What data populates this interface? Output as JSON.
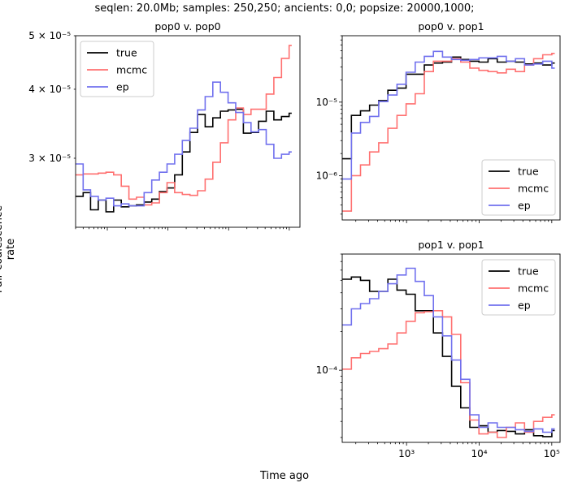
{
  "figure": {
    "title": "seqlen: 20.0Mb; samples: 250,250; ancients: 0,0; popsize: 20000,1000;",
    "xlabel": "Time ago",
    "ylabel": "Pair coalescence rate"
  },
  "colors": {
    "true": "#000000",
    "mcmc": "#ff7070",
    "ep": "#7070ee"
  },
  "chart_data": [
    {
      "type": "line",
      "title": "pop0 v. pop0",
      "xscale": "log",
      "yscale": "log",
      "xlim": [
        30,
        150000
      ],
      "ylim": [
        2.25e-05,
        5e-05
      ],
      "yticks_labels": [
        "5 × 10⁻⁵",
        "4 × 10⁻⁵",
        "3 × 10⁻⁵"
      ],
      "yticks_values": [
        5e-05,
        4e-05,
        3e-05
      ],
      "legend_position": "top-left",
      "x_edges": [
        30,
        40,
        53,
        71,
        95,
        127,
        170,
        227,
        303,
        405,
        541,
        723,
        966,
        1290,
        1724,
        2303,
        3077,
        4111,
        5492,
        7337,
        9802,
        13095,
        17494,
        23372,
        31224,
        41714,
        55728,
        74451,
        99464,
        110000
      ],
      "series": [
        {
          "name": "true",
          "color_key": "true",
          "values": [
            2.56e-05,
            2.6e-05,
            2.42e-05,
            2.52e-05,
            2.4e-05,
            2.52e-05,
            2.45e-05,
            2.46e-05,
            2.47e-05,
            2.5e-05,
            2.53e-05,
            2.61e-05,
            2.65e-05,
            2.8e-05,
            3.08e-05,
            3.34e-05,
            3.6e-05,
            3.42e-05,
            3.55e-05,
            3.65e-05,
            3.67e-05,
            3.68e-05,
            3.33e-05,
            3.34e-05,
            3.5e-05,
            3.65e-05,
            3.52e-05,
            3.57e-05,
            3.62e-05
          ]
        },
        {
          "name": "mcmc",
          "color_key": "mcmc",
          "values": [
            2.8e-05,
            2.81e-05,
            2.81e-05,
            2.82e-05,
            2.83e-05,
            2.8e-05,
            2.67e-05,
            2.53e-05,
            2.55e-05,
            2.47e-05,
            2.49e-05,
            2.6e-05,
            2.71e-05,
            2.6e-05,
            2.58e-05,
            2.57e-05,
            2.62e-05,
            2.75e-05,
            2.95e-05,
            3.2e-05,
            3.52e-05,
            3.7e-05,
            3.6e-05,
            3.68e-05,
            3.68e-05,
            3.92e-05,
            4.2e-05,
            4.55e-05,
            4.8e-05
          ]
        },
        {
          "name": "ep",
          "color_key": "ep",
          "values": [
            2.93e-05,
            2.63e-05,
            2.56e-05,
            2.52e-05,
            2.54e-05,
            2.46e-05,
            2.48e-05,
            2.46e-05,
            2.46e-05,
            2.6e-05,
            2.74e-05,
            2.83e-05,
            2.93e-05,
            3.05e-05,
            3.23e-05,
            3.4e-05,
            3.67e-05,
            3.88e-05,
            4.12e-05,
            3.95e-05,
            3.78e-05,
            3.63e-05,
            3.48e-05,
            3.35e-05,
            3.38e-05,
            3.18e-05,
            3e-05,
            3.05e-05,
            3.08e-05
          ]
        }
      ]
    },
    {
      "type": "line",
      "title": "pop0 v. pop1",
      "xscale": "log",
      "yscale": "log",
      "xlim": [
        130,
        130000
      ],
      "ylim": [
        2.5e-07,
        8e-05
      ],
      "yticks_labels": [
        "10⁻⁵",
        "10⁻⁶"
      ],
      "yticks_values": [
        1e-05,
        1e-06
      ],
      "legend_position": "bottom-right",
      "x_edges": [
        130,
        174,
        232,
        310,
        414,
        553,
        738,
        985,
        1315,
        1755,
        2343,
        3128,
        4176,
        5575,
        7443,
        9936,
        13264,
        17707,
        23638,
        31556,
        42126,
        56237,
        75075,
        100222,
        110000
      ],
      "series": [
        {
          "name": "true",
          "color_key": "true",
          "values": [
            1.7e-06,
            6.6e-06,
            7.6e-06,
            9.1e-06,
            1.05e-05,
            1.45e-05,
            1.55e-05,
            2.4e-05,
            2.4e-05,
            3.2e-05,
            3.4e-05,
            3.5e-05,
            4.1e-05,
            3.8e-05,
            3.6e-05,
            3.5e-05,
            3.9e-05,
            3.5e-05,
            3.6e-05,
            3.5e-05,
            3.3e-05,
            3.4e-05,
            3.2e-05,
            3.4e-05
          ]
        },
        {
          "name": "mcmc",
          "color_key": "mcmc",
          "values": [
            3.3e-07,
            1e-06,
            1.4e-06,
            2.1e-06,
            2.8e-06,
            4.4e-06,
            6.6e-06,
            9.5e-06,
            1.3e-05,
            2.6e-05,
            3.6e-05,
            3.6e-05,
            3.9e-05,
            3.5e-05,
            2.9e-05,
            2.7e-05,
            2.6e-05,
            2.5e-05,
            2.8e-05,
            2.6e-05,
            3.2e-05,
            3.9e-05,
            4.4e-05,
            4.6e-05
          ]
        },
        {
          "name": "ep",
          "color_key": "ep",
          "values": [
            9e-07,
            3.8e-06,
            5.3e-06,
            6.4e-06,
            1.02e-05,
            1.25e-05,
            1.75e-05,
            2.55e-05,
            3.5e-05,
            4.2e-05,
            4.9e-05,
            4.1e-05,
            3.8e-05,
            3.7e-05,
            3.8e-05,
            4e-05,
            4e-05,
            4.2e-05,
            3.6e-05,
            3.9e-05,
            3.2e-05,
            3.3e-05,
            3.6e-05,
            2.9e-05
          ]
        }
      ]
    },
    {
      "type": "line",
      "title": "pop1 v. pop1",
      "xscale": "log",
      "yscale": "log",
      "xlim": [
        130,
        130000
      ],
      "ylim": [
        2.75e-05,
        0.0008
      ],
      "xticks_values": [
        1000,
        10000,
        100000
      ],
      "xticks_labels": [
        "10³",
        "10⁴",
        "10⁵"
      ],
      "yticks_labels": [
        "10⁻⁴"
      ],
      "yticks_values": [
        0.0001
      ],
      "legend_position": "top-right",
      "x_edges": [
        130,
        174,
        232,
        310,
        414,
        553,
        738,
        985,
        1315,
        1755,
        2343,
        3128,
        4176,
        5575,
        7443,
        9936,
        13264,
        17707,
        23638,
        31556,
        42126,
        56237,
        75075,
        100222,
        110000
      ],
      "series": [
        {
          "name": "true",
          "color_key": "true",
          "values": [
            0.00051,
            0.00053,
            0.0005,
            0.00041,
            0.00041,
            0.00051,
            0.00042,
            0.00039,
            0.00029,
            0.00029,
            0.000195,
            0.000128,
            7.5e-05,
            5.1e-05,
            3.6e-05,
            3.7e-05,
            3.3e-05,
            3.4e-05,
            3.35e-05,
            3.2e-05,
            3.45e-05,
            3.1e-05,
            3.05e-05,
            3.4e-05
          ]
        },
        {
          "name": "mcmc",
          "color_key": "mcmc",
          "values": [
            0.000102,
            0.000125,
            0.000135,
            0.00014,
            0.000147,
            0.00016,
            0.000195,
            0.00024,
            0.00028,
            0.000285,
            0.00029,
            0.00026,
            0.00019,
            8e-05,
            4.1e-05,
            3.2e-05,
            3.3e-05,
            3e-05,
            3.6e-05,
            3.9e-05,
            3.3e-05,
            4e-05,
            4.3e-05,
            4.5e-05
          ]
        },
        {
          "name": "ep",
          "color_key": "ep",
          "values": [
            0.000225,
            0.0003,
            0.00033,
            0.00036,
            0.00041,
            0.00047,
            0.00055,
            0.00062,
            0.00049,
            0.00038,
            0.00026,
            0.000185,
            0.00012,
            8.5e-05,
            4.5e-05,
            3.6e-05,
            3.9e-05,
            3.6e-05,
            3.6e-05,
            3.45e-05,
            3.35e-05,
            3.5e-05,
            3.3e-05,
            3.5e-05
          ]
        }
      ]
    }
  ]
}
